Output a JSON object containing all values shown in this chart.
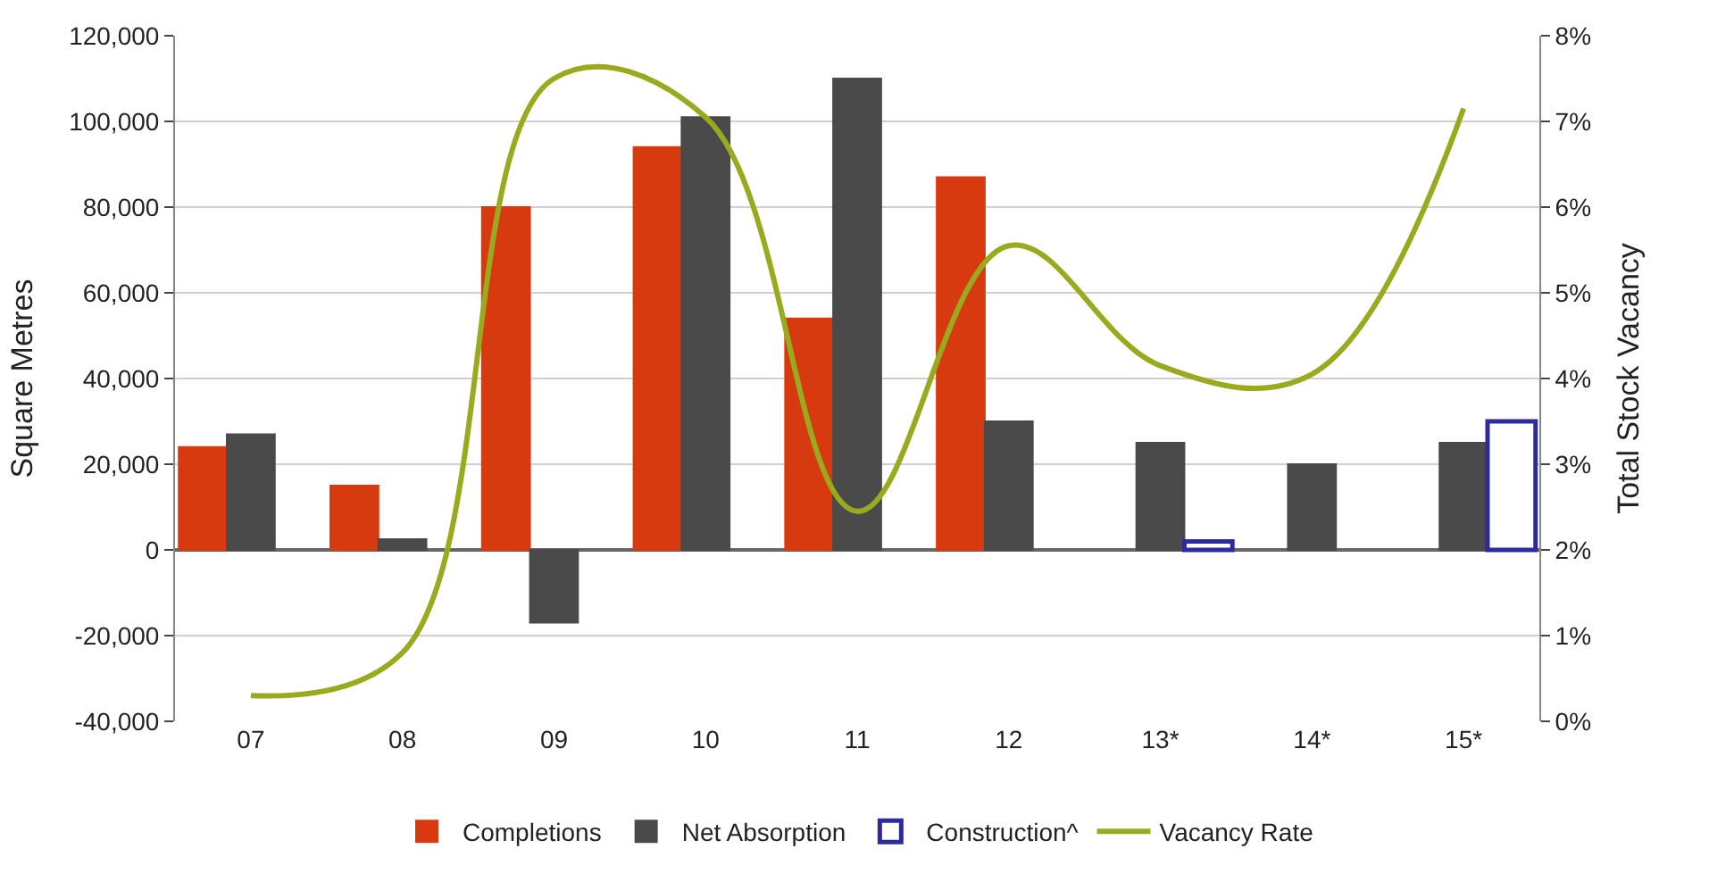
{
  "chart_data": {
    "type": "bar",
    "categories": [
      "07",
      "08",
      "09",
      "10",
      "11",
      "12",
      "13*",
      "14*",
      "15*"
    ],
    "ylabel": "Square Metres",
    "y2label": "Total Stock Vacancy",
    "ylim": [
      -40000,
      120000
    ],
    "yticks": [
      {
        "value": -40000,
        "label": "-40,000"
      },
      {
        "value": -20000,
        "label": "-20,000"
      },
      {
        "value": 0,
        "label": "0"
      },
      {
        "value": 20000,
        "label": "20,000"
      },
      {
        "value": 40000,
        "label": "40,000"
      },
      {
        "value": 60000,
        "label": "60,000"
      },
      {
        "value": 80000,
        "label": "80,000"
      },
      {
        "value": 100000,
        "label": "100,000"
      },
      {
        "value": 120000,
        "label": "120,000"
      }
    ],
    "y2lim": [
      0,
      8
    ],
    "y2ticks": [
      {
        "value": 0,
        "label": "0%"
      },
      {
        "value": 1,
        "label": "1%"
      },
      {
        "value": 2,
        "label": "2%"
      },
      {
        "value": 3,
        "label": "3%"
      },
      {
        "value": 4,
        "label": "4%"
      },
      {
        "value": 5,
        "label": "5%"
      },
      {
        "value": 6,
        "label": "6%"
      },
      {
        "value": 7,
        "label": "7%"
      },
      {
        "value": 8,
        "label": "8%"
      }
    ],
    "grid": "y",
    "legend": "bottom",
    "series": [
      {
        "name": "Completions",
        "color": "#d63a0e",
        "values": [
          24000,
          15000,
          80000,
          94000,
          54000,
          87000,
          null,
          null,
          null
        ]
      },
      {
        "name": "Net Absorption",
        "color": "#4a4a4a",
        "values": [
          27000,
          2500,
          -17000,
          101000,
          110000,
          30000,
          25000,
          20000,
          25000
        ]
      },
      {
        "name": "Construction^",
        "color": "#2b2b9b",
        "line_style": "solid",
        "values": [
          null,
          null,
          null,
          null,
          null,
          null,
          2000,
          null,
          30000
        ]
      },
      {
        "name": "Vacancy Rate",
        "color": "#9aaa1e",
        "type": "line",
        "axis": "y2",
        "marker": "none",
        "line_style": "solid",
        "values": [
          0.3,
          0.8,
          7.5,
          7.05,
          2.45,
          5.55,
          4.15,
          4.05,
          7.15
        ]
      }
    ]
  }
}
